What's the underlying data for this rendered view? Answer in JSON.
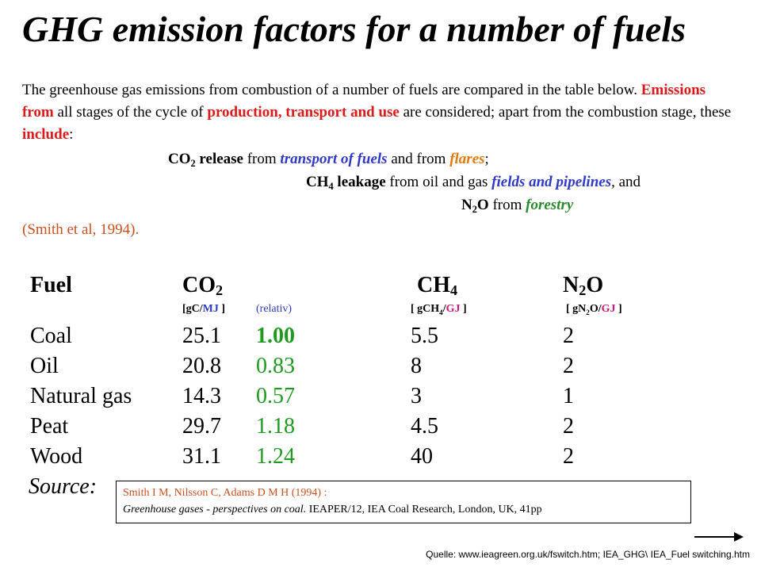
{
  "title": "GHG emission factors for a number of fuels",
  "intro": {
    "p1": "The greenhouse gas emissions from combustion of a number of fuels  are compared in the table below. ",
    "emissions_from": "Emissions from",
    "p2": " all stages of the cycle of ",
    "production_transport_use": "production, transport and use",
    "p3": " are considered; apart from the combustion stage, these ",
    "include": "include",
    "p4": ":"
  },
  "items": {
    "co2_label": "CO",
    "co2_sub": "2",
    "co2_release": " release",
    "co2_from": " from ",
    "transport_of_fuels": "transport of fuels",
    "and_from": " and from ",
    "flares": "flares",
    "semicolon": ";",
    "ch4_label": "CH",
    "ch4_sub": "4",
    "ch4_leakage": " leakage",
    "from_oil_gas": " from oil and gas ",
    "fields_pipelines": "fields and pipelines",
    "and_text": ",   and",
    "n2o_n": "N",
    "n2o_sub": "2",
    "n2o_o": "O",
    "from_text": " from ",
    "forestry": "forestry"
  },
  "citation": "(Smith et al, 1994).",
  "table": {
    "headers": {
      "fuel": "Fuel",
      "co2": "CO",
      "co2_sub": "2",
      "ch4": "CH",
      "ch4_sub": "4",
      "n2o_n": "N",
      "n2o_sub": "2",
      "n2o_o": "O"
    },
    "units": {
      "co2_open": "[gC/",
      "co2_mj": "MJ",
      "co2_close": " ]",
      "relativ": "(relativ)",
      "ch4_open": "[ gCH",
      "ch4_sub": "4",
      "ch4_slash": "/",
      "ch4_gj": "GJ",
      "ch4_close": " ]",
      "n2o_open": "[ gN",
      "n2o_sub": "2",
      "n2o_o": "O/",
      "n2o_gj": "GJ",
      "n2o_close": " ]"
    },
    "rows": [
      {
        "fuel": "Coal",
        "co2": "25.1",
        "rel": "1.00",
        "ch4": "5.5",
        "n2o": "2"
      },
      {
        "fuel": "Oil",
        "co2": "20.8",
        "rel": "0.83",
        "ch4": "8",
        "n2o": "2"
      },
      {
        "fuel": "Natural gas",
        "co2": "14.3",
        "rel": "0.57",
        "ch4": "3",
        "n2o": "1"
      },
      {
        "fuel": "Peat",
        "co2": "29.7",
        "rel": "1.18",
        "ch4": "4.5",
        "n2o": "2"
      },
      {
        "fuel": "Wood",
        "co2": "31.1",
        "rel": "1.24",
        "ch4": "40",
        "n2o": "2"
      }
    ]
  },
  "source": {
    "label": "Source:",
    "line1": "Smith I M, Nilsson C, Adams D M H (1994) :",
    "line2_italic": "Greenhouse gases - perspectives on coal.",
    "line2_rest": " IEAPER/12, IEA Coal Research, London, UK, 41pp"
  },
  "footer": "Quelle: www.ieagreen.org.uk/fswitch.htm;     IEA_GHG\\ IEA_Fuel switching.htm",
  "colors": {
    "red": "#dd1a1a",
    "blue": "#2f39c8",
    "orange": "#e07a10",
    "green": "#1e9a1e",
    "magenta": "#cc1a7a"
  }
}
